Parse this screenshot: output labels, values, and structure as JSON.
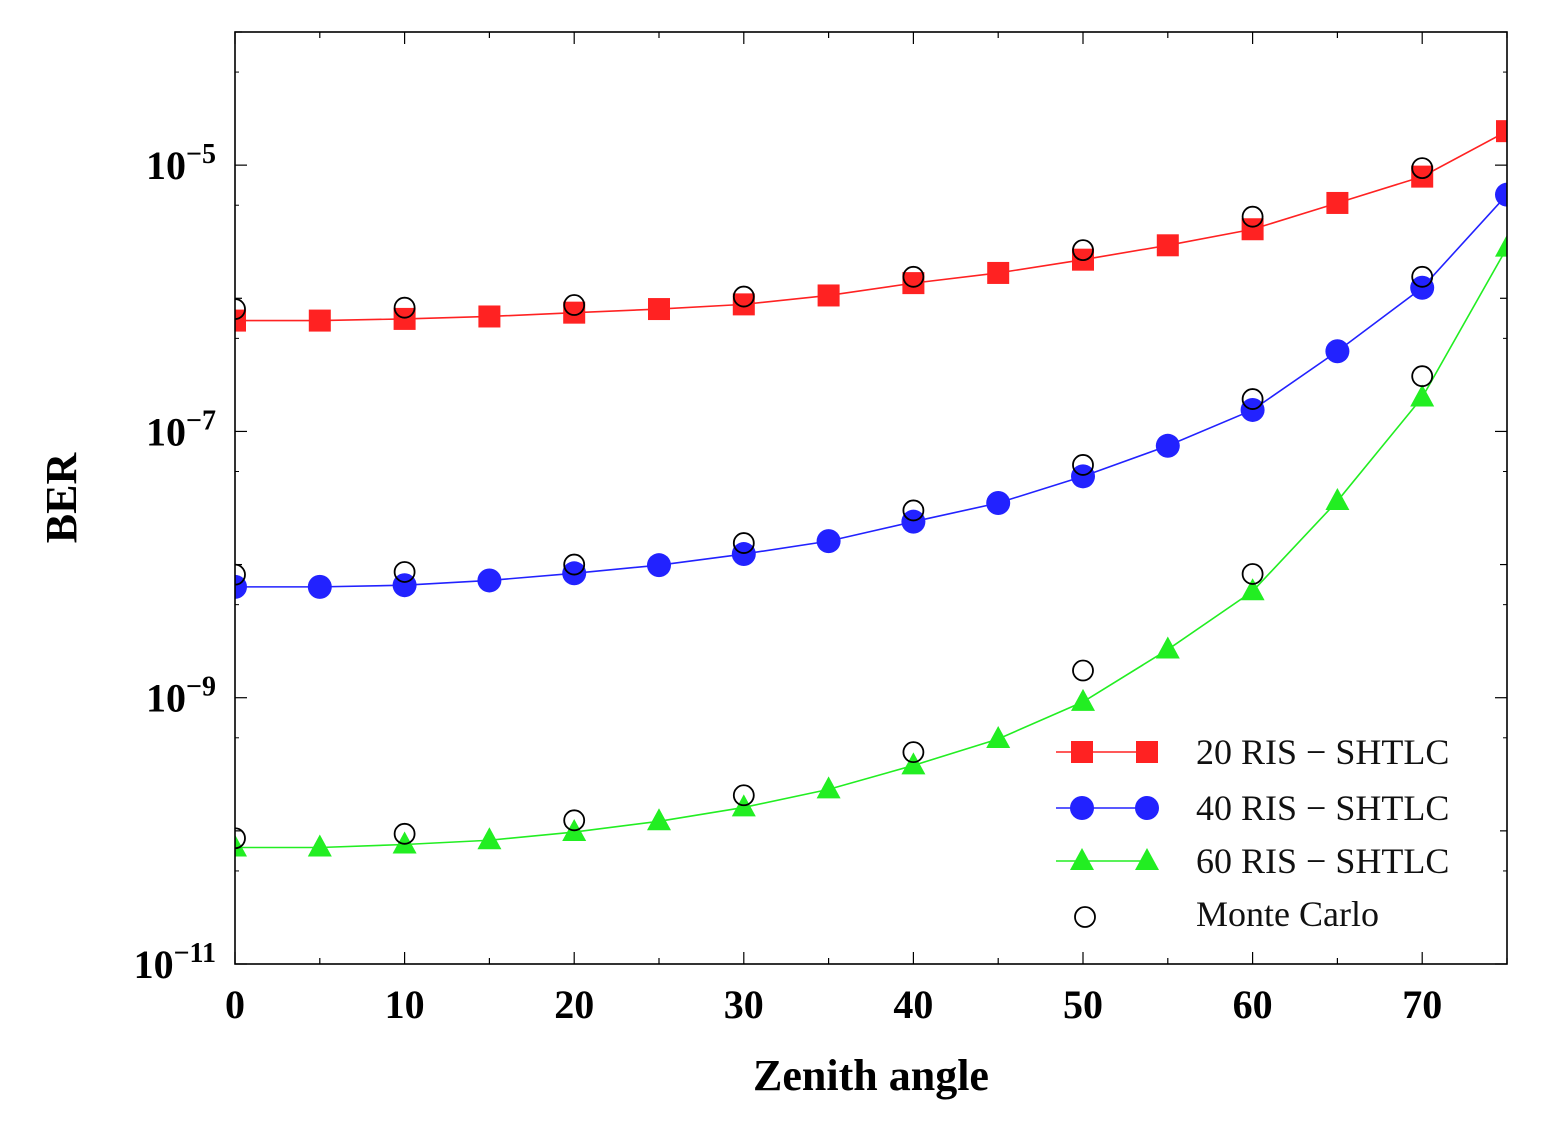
{
  "chart_data": {
    "type": "line",
    "title": "",
    "xlabel": "Zenith angle",
    "ylabel": "BER",
    "yscale": "log",
    "xlim": [
      0,
      75
    ],
    "ylim": [
      1e-11,
      0.0001
    ],
    "x_ticks": [
      "0",
      "10",
      "20",
      "30",
      "40",
      "50",
      "60",
      "70"
    ],
    "y_ticks": [
      {
        "base": "10",
        "exp": "−5",
        "value": 1e-05
      },
      {
        "base": "10",
        "exp": "−7",
        "value": 1e-07
      },
      {
        "base": "10",
        "exp": "−9",
        "value": 1e-09
      },
      {
        "base": "10",
        "exp": "−11",
        "value": 1e-11
      }
    ],
    "legend_position": "bottom-right",
    "series": [
      {
        "name": "20 RIS − SHTLC",
        "color": "#ff2222",
        "marker": "square",
        "x": [
          0,
          5,
          10,
          15,
          20,
          25,
          30,
          35,
          40,
          45,
          50,
          55,
          60,
          65,
          70,
          75
        ],
        "y": [
          6.8e-07,
          6.8e-07,
          7e-07,
          7.3e-07,
          7.8e-07,
          8.3e-07,
          9e-07,
          1.05e-06,
          1.3e-06,
          1.55e-06,
          1.95e-06,
          2.5e-06,
          3.3e-06,
          5.2e-06,
          8.2e-06,
          1.8e-05
        ]
      },
      {
        "name": "40 RIS − SHTLC",
        "color": "#2222ff",
        "marker": "circle",
        "x": [
          0,
          5,
          10,
          15,
          20,
          25,
          30,
          35,
          40,
          45,
          50,
          55,
          60,
          65,
          70,
          75
        ],
        "y": [
          6.8e-09,
          6.8e-09,
          7e-09,
          7.6e-09,
          8.6e-09,
          9.9e-09,
          1.2e-08,
          1.5e-08,
          2.1e-08,
          2.9e-08,
          4.6e-08,
          7.8e-08,
          1.45e-07,
          4e-07,
          1.2e-06,
          6e-06
        ]
      },
      {
        "name": "60 RIS − SHTLC",
        "color": "#22ee22",
        "marker": "triangle",
        "x": [
          0,
          5,
          10,
          15,
          20,
          25,
          30,
          35,
          40,
          45,
          50,
          55,
          60,
          65,
          70,
          75
        ],
        "y": [
          7.5e-11,
          7.5e-11,
          7.9e-11,
          8.5e-11,
          9.8e-11,
          1.18e-10,
          1.5e-10,
          2.05e-10,
          3.1e-10,
          4.9e-10,
          9.3e-10,
          2.3e-09,
          6.3e-09,
          3e-08,
          1.8e-07,
          2.4e-06
        ]
      },
      {
        "name": "Monte Carlo",
        "color": "#000000",
        "marker": "open-circle",
        "groups": [
          {
            "x": [
              0,
              10,
              20,
              30,
              40,
              50,
              60,
              70
            ],
            "y": [
              8.3e-07,
              8.5e-07,
              8.9e-07,
              1.03e-06,
              1.45e-06,
              2.3e-06,
              4.1e-06,
              9.5e-06
            ]
          },
          {
            "x": [
              0,
              10,
              20,
              30,
              40,
              50,
              60,
              70
            ],
            "y": [
              8.4e-09,
              8.8e-09,
              1e-08,
              1.45e-08,
              2.55e-08,
              5.6e-08,
              1.75e-07,
              1.45e-06
            ]
          },
          {
            "x": [
              0,
              10,
              20,
              30,
              40,
              50,
              60,
              70
            ],
            "y": [
              8.8e-11,
              9.5e-11,
              1.2e-10,
              1.85e-10,
              3.9e-10,
              1.6e-09,
              8.5e-09,
              2.6e-07
            ]
          }
        ]
      }
    ]
  }
}
